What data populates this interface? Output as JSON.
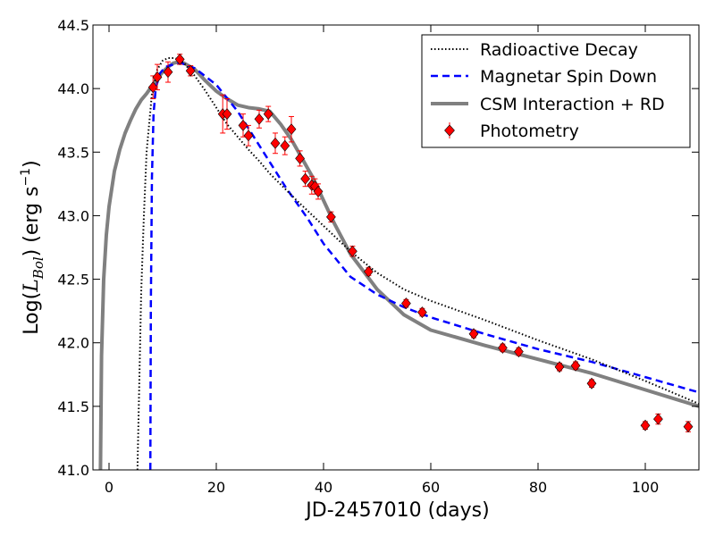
{
  "chart_data": {
    "type": "line",
    "xlabel": "JD-2457010 (days)",
    "ylabel_prefix": "Log(",
    "ylabel_symbol_main": "L",
    "ylabel_symbol_sub": "Bol",
    "ylabel_unit_open": ") (erg s",
    "ylabel_unit_exp": "−1",
    "ylabel_unit_close": ")",
    "xlim": [
      -3,
      110
    ],
    "ylim": [
      41.0,
      44.5
    ],
    "x_ticks": [
      0,
      20,
      40,
      60,
      80,
      100
    ],
    "x_tick_labels": [
      "0",
      "20",
      "40",
      "60",
      "80",
      "100"
    ],
    "y_ticks": [
      41.0,
      41.5,
      42.0,
      42.5,
      43.0,
      43.5,
      44.0,
      44.5
    ],
    "y_tick_labels": [
      "41.0",
      "41.5",
      "42.0",
      "42.5",
      "43.0",
      "43.5",
      "44.0",
      "44.5"
    ],
    "legend_position": "top-right",
    "series": [
      {
        "name": "Radioactive Decay",
        "style": "dotted",
        "color": "#000000",
        "x": [
          5.3,
          5.6,
          6.0,
          6.5,
          7.0,
          8.0,
          9.0,
          10.0,
          11.0,
          12.0,
          13.0,
          14.0,
          16.0,
          18.0,
          20.0,
          22.0,
          24.0,
          26.0,
          28.0,
          30.0,
          35.0,
          40.0,
          45.0,
          50.0,
          55.0,
          60.0,
          70.0,
          80.0,
          90.0,
          100.0,
          110.0
        ],
        "y": [
          41.0,
          41.6,
          42.4,
          43.0,
          43.5,
          43.96,
          44.15,
          44.22,
          44.24,
          44.24,
          44.23,
          44.2,
          44.1,
          43.98,
          43.85,
          43.72,
          43.62,
          43.52,
          43.43,
          43.33,
          43.12,
          42.92,
          42.72,
          42.55,
          42.42,
          42.33,
          42.18,
          42.02,
          41.87,
          41.7,
          41.52
        ]
      },
      {
        "name": "Magnetar Spin Down",
        "style": "dashed",
        "color": "#0000ff",
        "x": [
          7.7,
          7.8,
          8.0,
          8.3,
          8.7,
          9.5,
          10.5,
          12.0,
          13.5,
          16.0,
          20.0,
          24.0,
          27.0,
          30.0,
          33.0,
          37.0,
          40.0,
          45.0,
          50.0,
          55.0,
          60.0,
          70.0,
          80.0,
          90.0,
          100.0,
          110.0
        ],
        "y": [
          41.0,
          42.3,
          43.3,
          43.8,
          44.0,
          44.12,
          44.17,
          44.19,
          44.2,
          44.16,
          44.03,
          43.82,
          43.62,
          43.42,
          43.22,
          42.98,
          42.78,
          42.52,
          42.38,
          42.28,
          42.2,
          42.07,
          41.95,
          41.85,
          41.73,
          41.61
        ]
      },
      {
        "name": "CSM Interaction + RD",
        "style": "solid",
        "color": "#808080",
        "x": [
          -1.6,
          -1.4,
          -1.0,
          -0.5,
          0.0,
          1.0,
          2.0,
          3.0,
          4.0,
          5.0,
          6.0,
          7.0,
          8.0,
          9.0,
          10.0,
          11.0,
          12.0,
          13.0,
          14.0,
          16.0,
          18.0,
          20.0,
          22.0,
          24.0,
          26.0,
          28.0,
          30.0,
          32.0,
          34.0,
          36.0,
          38.0,
          40.0,
          42.0,
          45.0,
          50.0,
          55.0,
          60.0,
          70.0,
          80.0,
          90.0,
          100.0,
          110.0
        ],
        "y": [
          41.0,
          41.9,
          42.5,
          42.85,
          43.07,
          43.35,
          43.52,
          43.65,
          43.75,
          43.84,
          43.91,
          43.96,
          44.02,
          44.08,
          44.13,
          44.17,
          44.2,
          44.21,
          44.2,
          44.15,
          44.06,
          43.98,
          43.92,
          43.87,
          43.85,
          43.84,
          43.82,
          43.72,
          43.6,
          43.45,
          43.3,
          43.12,
          42.94,
          42.7,
          42.42,
          42.22,
          42.1,
          41.98,
          41.87,
          41.76,
          41.63,
          41.5
        ]
      }
    ],
    "photometry": {
      "name": "Photometry",
      "color": "#ff0000",
      "error_color": "#ff0000",
      "x": [
        8.2,
        9.0,
        11.0,
        13.2,
        15.2,
        21.2,
        22.0,
        25.0,
        26.0,
        28.0,
        29.7,
        31.0,
        32.8,
        34.0,
        35.6,
        36.6,
        37.8,
        38.4,
        39.0,
        41.4,
        45.4,
        48.4,
        55.4,
        58.4,
        68.0,
        73.4,
        76.4,
        84.0,
        87.0,
        90.0,
        100.0,
        102.4,
        108.0
      ],
      "y": [
        44.01,
        44.09,
        44.13,
        44.23,
        44.14,
        43.8,
        43.8,
        43.71,
        43.63,
        43.76,
        43.8,
        43.57,
        43.55,
        43.68,
        43.45,
        43.29,
        43.24,
        43.23,
        43.19,
        42.99,
        42.72,
        42.56,
        42.31,
        42.24,
        42.07,
        41.96,
        41.93,
        41.81,
        41.82,
        41.68,
        41.35,
        41.4,
        41.34
      ],
      "err": [
        0.09,
        0.1,
        0.08,
        0.04,
        0.04,
        0.15,
        0.12,
        0.09,
        0.08,
        0.07,
        0.06,
        0.08,
        0.07,
        0.1,
        0.06,
        0.06,
        0.07,
        0.06,
        0.06,
        0.04,
        0.04,
        0.03,
        0.03,
        0.03,
        0.03,
        0.03,
        0.03,
        0.03,
        0.03,
        0.03,
        0.03,
        0.04,
        0.04
      ]
    }
  }
}
